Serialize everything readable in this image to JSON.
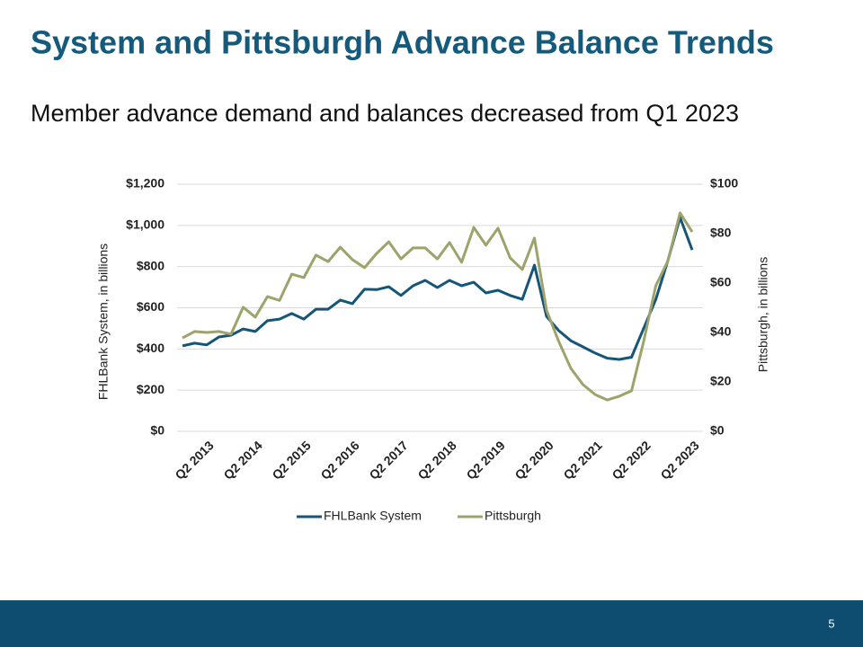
{
  "page_number": "5",
  "chart_data": {
    "type": "line",
    "title": "System and Pittsburgh Advance Balance Trends",
    "subtitle": "Member advance demand and balances decreased from Q1 2023",
    "ylabel": "FHLBank System, in billions",
    "y2label": "Pittsburgh, in billions",
    "categories": [
      null,
      null,
      "Q2 2013",
      null,
      null,
      null,
      "Q2 2014",
      null,
      null,
      null,
      "Q2 2015",
      null,
      null,
      null,
      "Q2 2016",
      null,
      null,
      null,
      "Q2 2017",
      null,
      null,
      null,
      "Q2 2018",
      null,
      null,
      null,
      "Q2 2019",
      null,
      null,
      null,
      "Q2 2020",
      null,
      null,
      null,
      "Q2 2021",
      null,
      null,
      null,
      "Q2 2022",
      null,
      null,
      null,
      "Q2 2023"
    ],
    "series": [
      {
        "name": "FHLBank System",
        "color": "#155578",
        "values": [
          415,
          428,
          420,
          458,
          467,
          497,
          485,
          537,
          545,
          572,
          545,
          593,
          593,
          637,
          620,
          690,
          688,
          702,
          660,
          707,
          733,
          698,
          733,
          707,
          724,
          672,
          685,
          660,
          641,
          807,
          558,
          489,
          440,
          410,
          380,
          355,
          349,
          360,
          500,
          640,
          830,
          1038,
          881
        ]
      },
      {
        "name": "Pittsburgh",
        "color": "#9ea36b",
        "axis": "y2",
        "values": [
          37.8,
          40.4,
          40,
          40.4,
          39.3,
          50.2,
          46.2,
          54.5,
          53,
          63.6,
          62.2,
          71.3,
          68.7,
          74.5,
          69.5,
          66.2,
          72,
          76.7,
          69.8,
          74.2,
          74.2,
          69.8,
          76.4,
          68.4,
          82.5,
          75.3,
          82.2,
          70.2,
          65.5,
          78.2,
          49,
          36.4,
          25.5,
          18.9,
          14.9,
          12.7,
          14.2,
          16.4,
          36.4,
          58.9,
          69,
          88.4,
          80.7
        ]
      }
    ],
    "ylim": [
      0,
      1200
    ],
    "yticks": [
      {
        "value": 0,
        "label": "$0"
      },
      {
        "value": 200,
        "label": "$200"
      },
      {
        "value": 400,
        "label": "$400"
      },
      {
        "value": 600,
        "label": "$600"
      },
      {
        "value": 800,
        "label": "$800"
      },
      {
        "value": 1000,
        "label": "$1,000"
      },
      {
        "value": 1200,
        "label": "$1,200"
      }
    ],
    "y2lim": [
      0,
      100
    ],
    "y2ticks": [
      {
        "value": 0,
        "label": "$0"
      },
      {
        "value": 20,
        "label": "$20"
      },
      {
        "value": 40,
        "label": "$40"
      },
      {
        "value": 60,
        "label": "$60"
      },
      {
        "value": 80,
        "label": "$80"
      },
      {
        "value": 100,
        "label": "$100"
      }
    ],
    "grid": true,
    "legend": "bottom"
  }
}
